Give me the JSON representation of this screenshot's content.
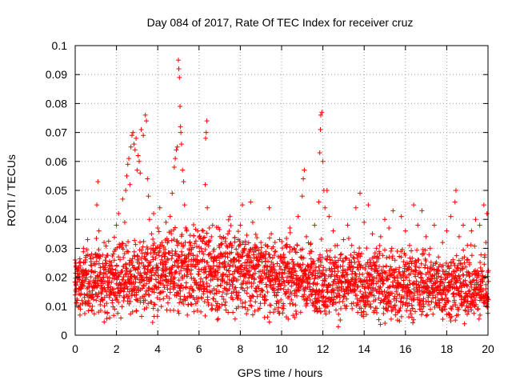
{
  "chart_data": {
    "type": "scatter",
    "title": "Day 084 of 2017, Rate Of TEC Index for receiver cruz",
    "xlabel": "GPS time / hours",
    "ylabel": "ROTI / TECUs",
    "xlim": [
      0,
      20
    ],
    "ylim": [
      0,
      0.1
    ],
    "x_ticks": [
      "0",
      "2",
      "4",
      "6",
      "8",
      "10",
      "12",
      "14",
      "16",
      "18",
      "20"
    ],
    "y_ticks": [
      "0",
      "0.01",
      "0.02",
      "0.03",
      "0.04",
      "0.05",
      "0.06",
      "0.07",
      "0.08",
      "0.09",
      "0.1"
    ],
    "grid": true,
    "marker": "+",
    "color": "#ff0000",
    "series": [
      {
        "name": "ROTI",
        "points": [
          [
            0.05,
            0.016
          ],
          [
            0.1,
            0.012
          ],
          [
            0.15,
            0.02
          ],
          [
            0.2,
            0.025
          ],
          [
            0.25,
            0.009
          ],
          [
            0.3,
            0.018
          ],
          [
            0.35,
            0.022
          ],
          [
            0.4,
            0.03
          ],
          [
            0.45,
            0.014
          ],
          [
            0.5,
            0.026
          ],
          [
            0.6,
            0.033
          ],
          [
            0.7,
            0.011
          ],
          [
            0.8,
            0.024
          ],
          [
            0.9,
            0.019
          ],
          [
            1.0,
            0.028
          ],
          [
            1.05,
            0.045
          ],
          [
            1.1,
            0.053
          ],
          [
            1.15,
            0.036
          ],
          [
            1.2,
            0.021
          ],
          [
            1.3,
            0.015
          ],
          [
            1.4,
            0.032
          ],
          [
            1.5,
            0.027
          ],
          [
            1.6,
            0.018
          ],
          [
            1.7,
            0.023
          ],
          [
            1.8,
            0.012
          ],
          [
            1.9,
            0.029
          ],
          [
            2.0,
            0.038
          ],
          [
            2.1,
            0.042
          ],
          [
            2.2,
            0.031
          ],
          [
            2.3,
            0.047
          ],
          [
            2.4,
            0.039
          ],
          [
            2.45,
            0.05
          ],
          [
            2.5,
            0.055
          ],
          [
            2.55,
            0.059
          ],
          [
            2.6,
            0.061
          ],
          [
            2.65,
            0.052
          ],
          [
            2.7,
            0.065
          ],
          [
            2.75,
            0.069
          ],
          [
            2.8,
            0.07
          ],
          [
            2.85,
            0.066
          ],
          [
            2.9,
            0.064
          ],
          [
            2.95,
            0.068
          ],
          [
            3.0,
            0.057
          ],
          [
            3.05,
            0.062
          ],
          [
            3.1,
            0.06
          ],
          [
            3.15,
            0.056
          ],
          [
            3.2,
            0.071
          ],
          [
            3.3,
            0.069
          ],
          [
            3.4,
            0.076
          ],
          [
            3.45,
            0.074
          ],
          [
            3.5,
            0.054
          ],
          [
            3.55,
            0.048
          ],
          [
            3.6,
            0.04
          ],
          [
            3.7,
            0.035
          ],
          [
            3.8,
            0.042
          ],
          [
            3.9,
            0.03
          ],
          [
            4.0,
            0.037
          ],
          [
            4.1,
            0.044
          ],
          [
            4.2,
            0.032
          ],
          [
            4.3,
            0.028
          ],
          [
            4.4,
            0.039
          ],
          [
            4.5,
            0.026
          ],
          [
            4.6,
            0.041
          ],
          [
            4.7,
            0.049
          ],
          [
            4.8,
            0.058
          ],
          [
            4.85,
            0.061
          ],
          [
            4.9,
            0.064
          ],
          [
            4.95,
            0.065
          ],
          [
            5.0,
            0.095
          ],
          [
            5.02,
            0.092
          ],
          [
            5.05,
            0.089
          ],
          [
            5.08,
            0.079
          ],
          [
            5.1,
            0.072
          ],
          [
            5.12,
            0.07
          ],
          [
            5.15,
            0.066
          ],
          [
            5.2,
            0.057
          ],
          [
            5.25,
            0.053
          ],
          [
            5.3,
            0.045
          ],
          [
            5.4,
            0.036
          ],
          [
            5.5,
            0.028
          ],
          [
            5.6,
            0.031
          ],
          [
            5.7,
            0.024
          ],
          [
            5.8,
            0.019
          ],
          [
            5.9,
            0.026
          ],
          [
            6.0,
            0.022
          ],
          [
            6.1,
            0.03
          ],
          [
            6.2,
            0.036
          ],
          [
            6.3,
            0.052
          ],
          [
            6.32,
            0.068
          ],
          [
            6.35,
            0.07
          ],
          [
            6.38,
            0.074
          ],
          [
            6.4,
            0.044
          ],
          [
            6.5,
            0.037
          ],
          [
            6.6,
            0.034
          ],
          [
            6.7,
            0.029
          ],
          [
            6.8,
            0.022
          ],
          [
            6.9,
            0.017
          ],
          [
            7.0,
            0.025
          ],
          [
            7.1,
            0.028
          ],
          [
            7.2,
            0.021
          ],
          [
            7.4,
            0.035
          ],
          [
            7.5,
            0.041
          ],
          [
            7.6,
            0.031
          ],
          [
            7.8,
            0.026
          ],
          [
            7.9,
            0.033
          ],
          [
            8.0,
            0.038
          ],
          [
            8.1,
            0.045
          ],
          [
            8.2,
            0.03
          ],
          [
            8.3,
            0.024
          ],
          [
            8.5,
            0.046
          ],
          [
            8.6,
            0.039
          ],
          [
            8.8,
            0.027
          ],
          [
            9.0,
            0.032
          ],
          [
            9.2,
            0.024
          ],
          [
            9.4,
            0.044
          ],
          [
            9.5,
            0.035
          ],
          [
            9.7,
            0.029
          ],
          [
            9.9,
            0.033
          ],
          [
            10.0,
            0.027
          ],
          [
            10.2,
            0.031
          ],
          [
            10.4,
            0.037
          ],
          [
            10.6,
            0.03
          ],
          [
            10.8,
            0.041
          ],
          [
            11.0,
            0.048
          ],
          [
            11.05,
            0.054
          ],
          [
            11.1,
            0.057
          ],
          [
            11.2,
            0.034
          ],
          [
            11.4,
            0.029
          ],
          [
            11.6,
            0.038
          ],
          [
            11.8,
            0.046
          ],
          [
            11.85,
            0.063
          ],
          [
            11.88,
            0.071
          ],
          [
            11.9,
            0.076
          ],
          [
            11.95,
            0.077
          ],
          [
            12.0,
            0.06
          ],
          [
            12.05,
            0.05
          ],
          [
            12.1,
            0.044
          ],
          [
            12.2,
            0.05
          ],
          [
            12.3,
            0.041
          ],
          [
            12.5,
            0.036
          ],
          [
            12.7,
            0.031
          ],
          [
            12.9,
            0.028
          ],
          [
            13.0,
            0.033
          ],
          [
            13.2,
            0.038
          ],
          [
            13.4,
            0.031
          ],
          [
            13.6,
            0.044
          ],
          [
            13.8,
            0.049
          ],
          [
            14.0,
            0.039
          ],
          [
            14.2,
            0.045
          ],
          [
            14.4,
            0.035
          ],
          [
            14.6,
            0.03
          ],
          [
            14.8,
            0.034
          ],
          [
            15.0,
            0.04
          ],
          [
            15.2,
            0.037
          ],
          [
            15.4,
            0.043
          ],
          [
            15.6,
            0.029
          ],
          [
            15.8,
            0.041
          ],
          [
            16.0,
            0.036
          ],
          [
            16.2,
            0.031
          ],
          [
            16.4,
            0.045
          ],
          [
            16.6,
            0.038
          ],
          [
            16.8,
            0.043
          ],
          [
            17.0,
            0.034
          ],
          [
            17.2,
            0.03
          ],
          [
            17.4,
            0.038
          ],
          [
            17.6,
            0.027
          ],
          [
            17.8,
            0.032
          ],
          [
            18.0,
            0.036
          ],
          [
            18.2,
            0.041
          ],
          [
            18.4,
            0.046
          ],
          [
            18.45,
            0.05
          ],
          [
            18.6,
            0.034
          ],
          [
            18.8,
            0.038
          ],
          [
            19.0,
            0.031
          ],
          [
            19.2,
            0.036
          ],
          [
            19.4,
            0.04
          ],
          [
            19.6,
            0.038
          ],
          [
            19.8,
            0.045
          ],
          [
            19.9,
            0.032
          ],
          [
            19.95,
            0.042
          ]
        ],
        "band": {
          "step": 0.05,
          "base": [
            0.0126,
            0.012,
            0.0115,
            0.0115,
            0.0122,
            0.012,
            0.0112,
            0.0109,
            0.0107,
            0.0108,
            0.0105
          ],
          "spread": [
            0.016,
            0.019,
            0.022,
            0.026,
            0.024,
            0.02,
            0.019,
            0.018,
            0.018,
            0.017,
            0.017
          ]
        }
      }
    ]
  }
}
